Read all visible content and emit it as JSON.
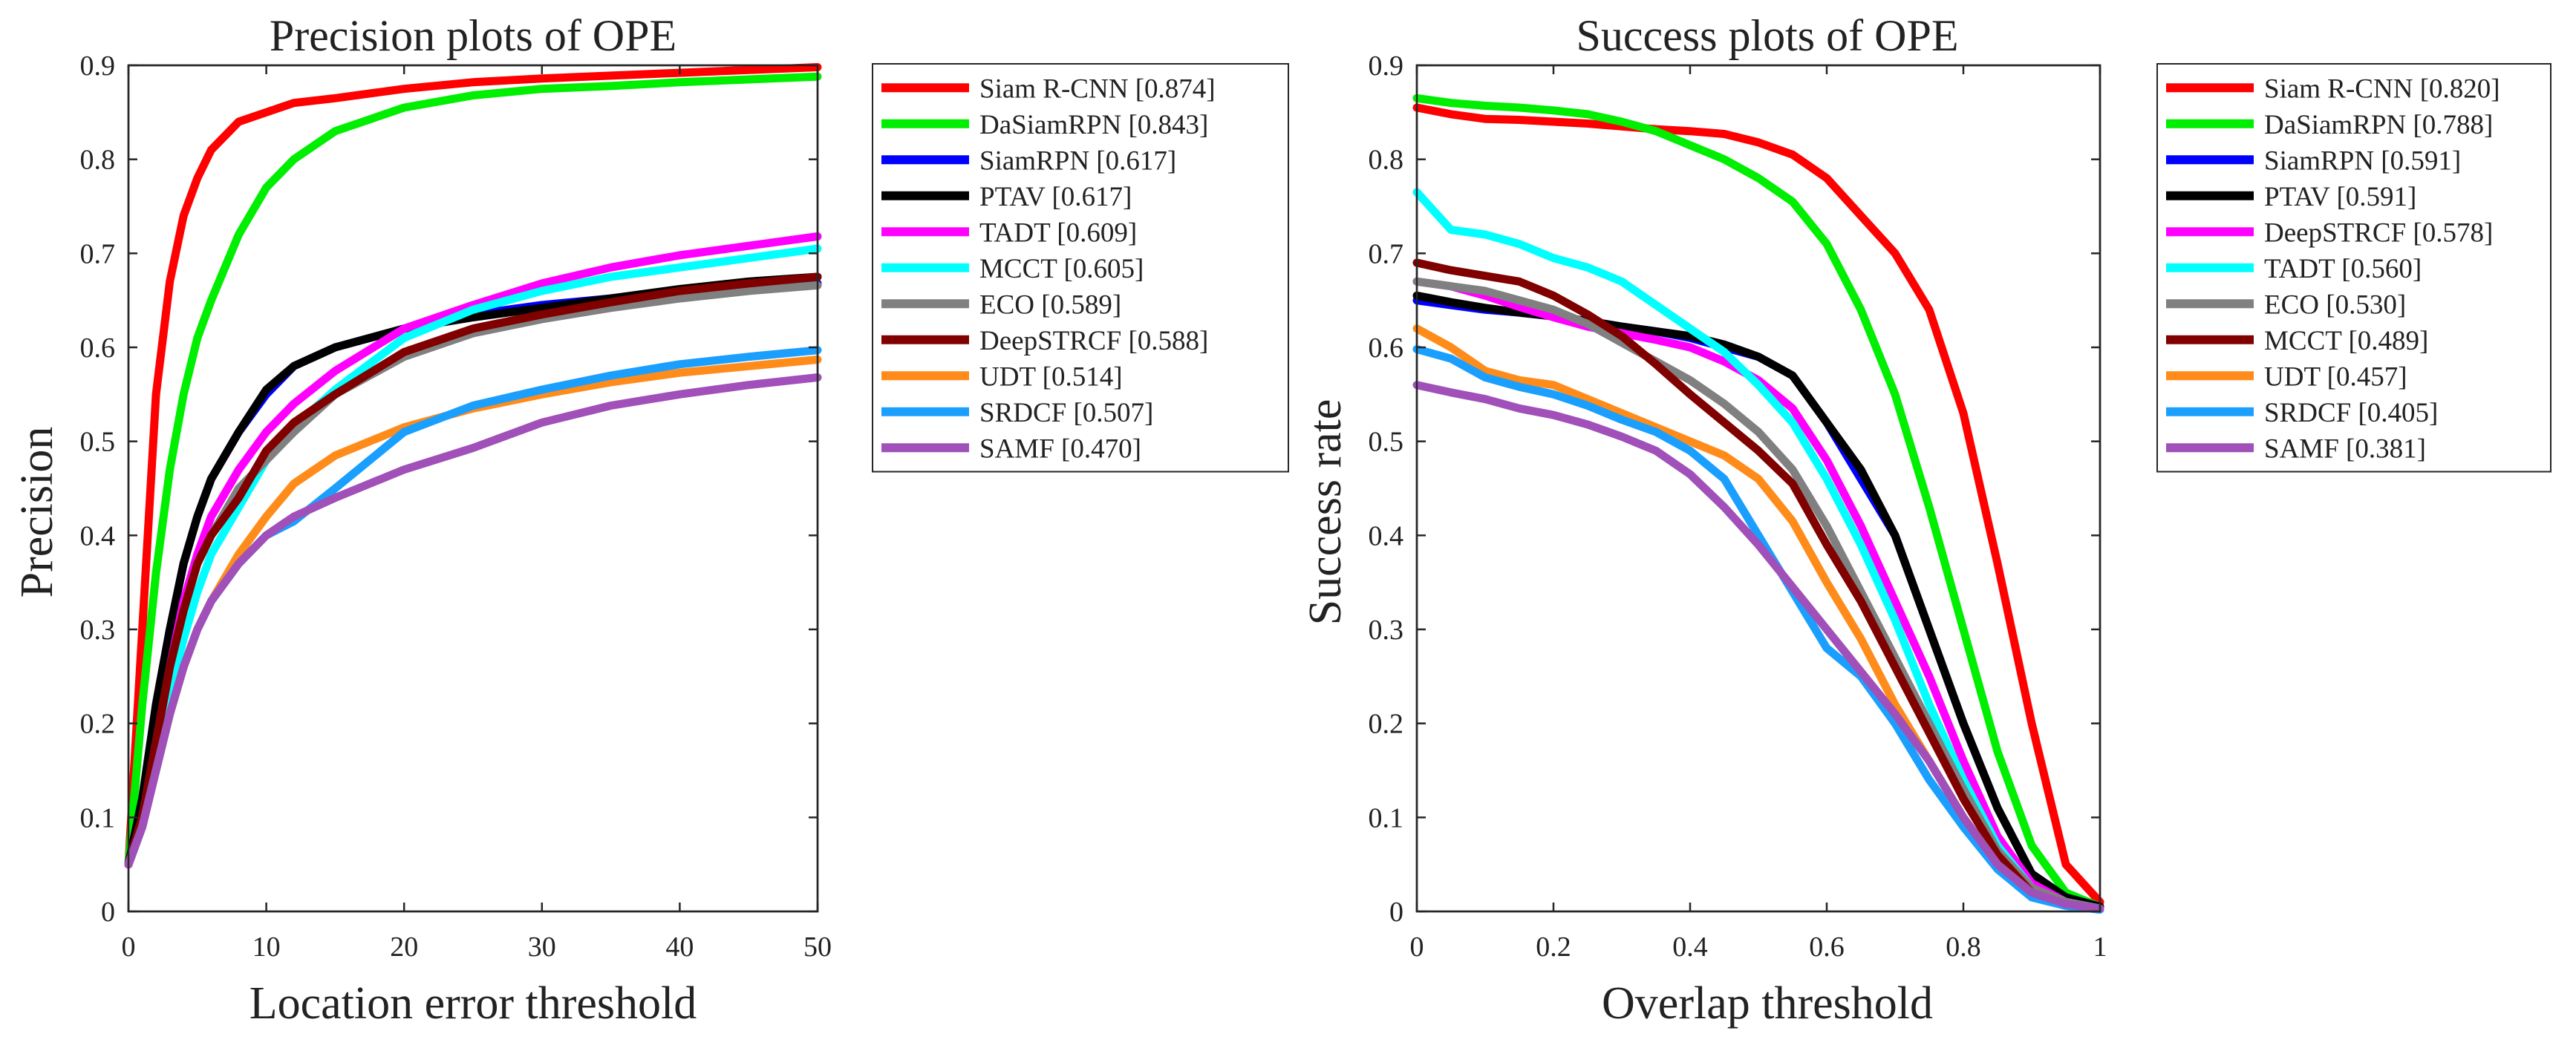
{
  "chart_data": [
    {
      "id": "precision",
      "type": "line",
      "title": "Precision plots of OPE",
      "xlabel": "Location error threshold",
      "ylabel": "Precision",
      "xlim": [
        0,
        50
      ],
      "ylim": [
        0,
        0.9
      ],
      "xticks": [
        0,
        10,
        20,
        30,
        40,
        50
      ],
      "xtick_labels": [
        "0",
        "10",
        "20",
        "30",
        "40",
        "50"
      ],
      "yticks": [
        0,
        0.1,
        0.2,
        0.3,
        0.4,
        0.5,
        0.6,
        0.7,
        0.8,
        0.9
      ],
      "ytick_labels": [
        "0",
        "0.1",
        "0.2",
        "0.3",
        "0.4",
        "0.5",
        "0.6",
        "0.7",
        "0.8",
        "0.9"
      ],
      "grid": false,
      "legend_position": "outside-right",
      "x": [
        0,
        1,
        2,
        3,
        4,
        5,
        6,
        8,
        10,
        12,
        15,
        20,
        25,
        30,
        35,
        40,
        45,
        50
      ],
      "series": [
        {
          "name": "Siam R-CNN",
          "score": "[0.874]",
          "color": "#ff0000",
          "values": [
            0.05,
            0.3,
            0.55,
            0.67,
            0.74,
            0.78,
            0.81,
            0.84,
            0.85,
            0.86,
            0.865,
            0.875,
            0.882,
            0.886,
            0.889,
            0.892,
            0.895,
            0.898
          ]
        },
        {
          "name": "DaSiamRPN",
          "score": "[0.843]",
          "color": "#00ee00",
          "values": [
            0.05,
            0.22,
            0.36,
            0.47,
            0.55,
            0.61,
            0.65,
            0.72,
            0.77,
            0.8,
            0.83,
            0.855,
            0.868,
            0.875,
            0.878,
            0.882,
            0.885,
            0.888
          ]
        },
        {
          "name": "SiamRPN",
          "score": "[0.617]",
          "color": "#0000ff",
          "values": [
            0.05,
            0.12,
            0.22,
            0.3,
            0.37,
            0.42,
            0.46,
            0.51,
            0.55,
            0.58,
            0.6,
            0.62,
            0.635,
            0.645,
            0.652,
            0.658,
            0.664,
            0.668
          ]
        },
        {
          "name": "PTAV",
          "score": "[0.617]",
          "color": "#000000",
          "values": [
            0.05,
            0.12,
            0.22,
            0.3,
            0.37,
            0.42,
            0.46,
            0.51,
            0.555,
            0.58,
            0.6,
            0.62,
            0.632,
            0.642,
            0.652,
            0.662,
            0.67,
            0.675
          ]
        },
        {
          "name": "TADT",
          "score": "[0.609]",
          "color": "#ff00ff",
          "values": [
            0.05,
            0.1,
            0.18,
            0.26,
            0.33,
            0.38,
            0.42,
            0.47,
            0.51,
            0.54,
            0.575,
            0.62,
            0.645,
            0.668,
            0.685,
            0.698,
            0.708,
            0.718
          ]
        },
        {
          "name": "MCCT",
          "score": "[0.605]",
          "color": "#00ffff",
          "values": [
            0.05,
            0.09,
            0.16,
            0.23,
            0.29,
            0.34,
            0.38,
            0.43,
            0.48,
            0.515,
            0.555,
            0.61,
            0.64,
            0.66,
            0.675,
            0.685,
            0.695,
            0.705
          ]
        },
        {
          "name": "ECO",
          "score": "[0.589]",
          "color": "#808080",
          "values": [
            0.05,
            0.1,
            0.18,
            0.26,
            0.32,
            0.37,
            0.4,
            0.45,
            0.48,
            0.51,
            0.55,
            0.59,
            0.615,
            0.63,
            0.642,
            0.652,
            0.66,
            0.666
          ]
        },
        {
          "name": "DeepSTRCF",
          "score": "[0.588]",
          "color": "#800000",
          "values": [
            0.05,
            0.1,
            0.18,
            0.26,
            0.32,
            0.37,
            0.4,
            0.44,
            0.49,
            0.52,
            0.55,
            0.595,
            0.62,
            0.635,
            0.648,
            0.66,
            0.668,
            0.675
          ]
        },
        {
          "name": "UDT",
          "score": "[0.514]",
          "color": "#ff8c1a",
          "values": [
            0.05,
            0.09,
            0.15,
            0.21,
            0.26,
            0.3,
            0.33,
            0.38,
            0.42,
            0.455,
            0.485,
            0.515,
            0.535,
            0.55,
            0.563,
            0.573,
            0.58,
            0.587
          ]
        },
        {
          "name": "SRDCF",
          "score": "[0.507]",
          "color": "#1a9fff",
          "values": [
            0.05,
            0.09,
            0.15,
            0.21,
            0.26,
            0.3,
            0.33,
            0.37,
            0.4,
            0.415,
            0.45,
            0.51,
            0.538,
            0.555,
            0.57,
            0.582,
            0.59,
            0.597
          ]
        },
        {
          "name": "SAMF",
          "score": "[0.470]",
          "color": "#a050b8",
          "values": [
            0.05,
            0.09,
            0.15,
            0.21,
            0.26,
            0.3,
            0.33,
            0.37,
            0.4,
            0.42,
            0.44,
            0.47,
            0.493,
            0.52,
            0.538,
            0.55,
            0.56,
            0.568
          ]
        }
      ]
    },
    {
      "id": "success",
      "type": "line",
      "title": "Success plots of OPE",
      "xlabel": "Overlap threshold",
      "ylabel": "Success rate",
      "xlim": [
        0,
        1
      ],
      "ylim": [
        0,
        0.9
      ],
      "xticks": [
        0,
        0.2,
        0.4,
        0.6,
        0.8,
        1
      ],
      "xtick_labels": [
        "0",
        "0.2",
        "0.4",
        "0.6",
        "0.8",
        "1"
      ],
      "yticks": [
        0,
        0.1,
        0.2,
        0.3,
        0.4,
        0.5,
        0.6,
        0.7,
        0.8,
        0.9
      ],
      "ytick_labels": [
        "0",
        "0.1",
        "0.2",
        "0.3",
        "0.4",
        "0.5",
        "0.6",
        "0.7",
        "0.8",
        "0.9"
      ],
      "grid": false,
      "legend_position": "outside-right",
      "x": [
        0,
        0.05,
        0.1,
        0.15,
        0.2,
        0.25,
        0.3,
        0.35,
        0.4,
        0.45,
        0.5,
        0.55,
        0.6,
        0.65,
        0.7,
        0.75,
        0.8,
        0.85,
        0.9,
        0.95,
        1
      ],
      "series": [
        {
          "name": "Siam R-CNN",
          "score": "[0.820]",
          "color": "#ff0000",
          "values": [
            0.855,
            0.848,
            0.843,
            0.842,
            0.84,
            0.838,
            0.835,
            0.832,
            0.83,
            0.827,
            0.818,
            0.805,
            0.78,
            0.74,
            0.7,
            0.64,
            0.53,
            0.37,
            0.2,
            0.05,
            0.01
          ]
        },
        {
          "name": "DaSiamRPN",
          "score": "[0.788]",
          "color": "#00ee00",
          "values": [
            0.865,
            0.86,
            0.857,
            0.855,
            0.852,
            0.848,
            0.84,
            0.83,
            0.815,
            0.8,
            0.78,
            0.755,
            0.71,
            0.64,
            0.55,
            0.43,
            0.3,
            0.17,
            0.07,
            0.02,
            0.005
          ]
        },
        {
          "name": "SiamRPN",
          "score": "[0.591]",
          "color": "#0000ff",
          "values": [
            0.65,
            0.645,
            0.64,
            0.637,
            0.633,
            0.628,
            0.622,
            0.617,
            0.61,
            0.6,
            0.59,
            0.57,
            0.52,
            0.46,
            0.4,
            0.3,
            0.2,
            0.11,
            0.04,
            0.015,
            0.005
          ]
        },
        {
          "name": "PTAV",
          "score": "[0.591]",
          "color": "#000000",
          "values": [
            0.655,
            0.648,
            0.642,
            0.637,
            0.633,
            0.628,
            0.622,
            0.617,
            0.612,
            0.603,
            0.59,
            0.57,
            0.52,
            0.47,
            0.4,
            0.3,
            0.2,
            0.11,
            0.04,
            0.015,
            0.005
          ]
        },
        {
          "name": "DeepSTRCF",
          "score": "[0.578]",
          "color": "#ff00ff",
          "values": [
            0.67,
            0.665,
            0.655,
            0.643,
            0.632,
            0.622,
            0.615,
            0.608,
            0.6,
            0.585,
            0.565,
            0.535,
            0.48,
            0.41,
            0.33,
            0.25,
            0.16,
            0.08,
            0.03,
            0.01,
            0.003
          ]
        },
        {
          "name": "TADT",
          "score": "[0.560]",
          "color": "#00ffff",
          "values": [
            0.765,
            0.725,
            0.72,
            0.71,
            0.695,
            0.685,
            0.67,
            0.645,
            0.62,
            0.595,
            0.56,
            0.52,
            0.46,
            0.39,
            0.31,
            0.22,
            0.14,
            0.07,
            0.025,
            0.01,
            0.003
          ]
        },
        {
          "name": "ECO",
          "score": "[0.530]",
          "color": "#808080",
          "values": [
            0.67,
            0.665,
            0.66,
            0.65,
            0.64,
            0.625,
            0.605,
            0.585,
            0.565,
            0.54,
            0.51,
            0.47,
            0.41,
            0.34,
            0.27,
            0.2,
            0.13,
            0.065,
            0.025,
            0.01,
            0.003
          ]
        },
        {
          "name": "MCCT",
          "score": "[0.489]",
          "color": "#800000",
          "values": [
            0.69,
            0.682,
            0.676,
            0.67,
            0.655,
            0.635,
            0.612,
            0.582,
            0.55,
            0.52,
            0.49,
            0.455,
            0.39,
            0.33,
            0.26,
            0.19,
            0.12,
            0.06,
            0.02,
            0.008,
            0.003
          ]
        },
        {
          "name": "UDT",
          "score": "[0.457]",
          "color": "#ff8c1a",
          "values": [
            0.62,
            0.6,
            0.575,
            0.565,
            0.56,
            0.545,
            0.53,
            0.515,
            0.5,
            0.485,
            0.46,
            0.415,
            0.35,
            0.29,
            0.22,
            0.16,
            0.1,
            0.05,
            0.02,
            0.008,
            0.003
          ]
        },
        {
          "name": "SRDCF",
          "score": "[0.405]",
          "color": "#1a9fff",
          "values": [
            0.598,
            0.588,
            0.568,
            0.558,
            0.55,
            0.538,
            0.523,
            0.51,
            0.49,
            0.46,
            0.4,
            0.34,
            0.28,
            0.25,
            0.2,
            0.14,
            0.09,
            0.045,
            0.015,
            0.006,
            0.002
          ]
        },
        {
          "name": "SAMF",
          "score": "[0.381]",
          "color": "#a050b8",
          "values": [
            0.56,
            0.552,
            0.545,
            0.535,
            0.528,
            0.518,
            0.505,
            0.49,
            0.465,
            0.43,
            0.39,
            0.345,
            0.3,
            0.255,
            0.21,
            0.16,
            0.1,
            0.05,
            0.02,
            0.008,
            0.003
          ]
        }
      ]
    }
  ]
}
